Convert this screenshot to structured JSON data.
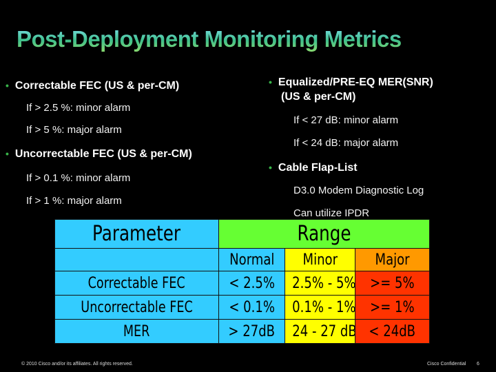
{
  "slide": {
    "title": "Post-Deployment Monitoring Metrics",
    "left_column": [
      {
        "label": "Correctable FEC (US & per-CM)",
        "items": [
          "If > 2.5 %: minor alarm",
          "If > 5 %: major alarm"
        ]
      },
      {
        "label": "Uncorrectable FEC (US & per-CM)",
        "items": [
          "If > 0.1 %: minor alarm",
          "If > 1 %: major alarm"
        ]
      }
    ],
    "right_column": [
      {
        "label_line1": "Equalized/PRE-EQ MER(SNR)",
        "label_line2": "(US & per-CM)",
        "items": [
          "If < 27 dB: minor alarm",
          "If < 24 dB: major alarm"
        ]
      },
      {
        "label": "Cable Flap-List",
        "items": [
          "D3.0 Modem Diagnostic Log",
          "Can utilize IPDR"
        ]
      }
    ],
    "bullet_glyph": "•",
    "colors": {
      "title_gradient_start": "#7fe2f2",
      "title_gradient_end": "#8ddb6e",
      "bullet": "#39b54a",
      "table_blue": "#33ccff",
      "table_green": "#66ff33",
      "table_yellow": "#ffff00",
      "table_orange": "#ff9900",
      "table_red": "#ff3300"
    }
  },
  "table": {
    "header_parameter": "Parameter",
    "header_range": "Range",
    "sub_headers": [
      "Normal",
      "Minor",
      "Major"
    ],
    "rows": [
      {
        "name": "Correctable FEC",
        "normal": "< 2.5%",
        "minor": "2.5% - 5%",
        "major": ">= 5%"
      },
      {
        "name": "Uncorrectable FEC",
        "normal": "< 0.1%",
        "minor": "0.1% - 1%",
        "major": ">= 1%"
      },
      {
        "name": "MER",
        "normal": "> 27dB",
        "minor": "24 - 27 dB",
        "major": "< 24dB"
      }
    ]
  },
  "footer": {
    "copyright": "© 2010 Cisco and/or its affiliates. All rights reserved.",
    "confidential": "Cisco Confidential",
    "page_number": "6"
  }
}
